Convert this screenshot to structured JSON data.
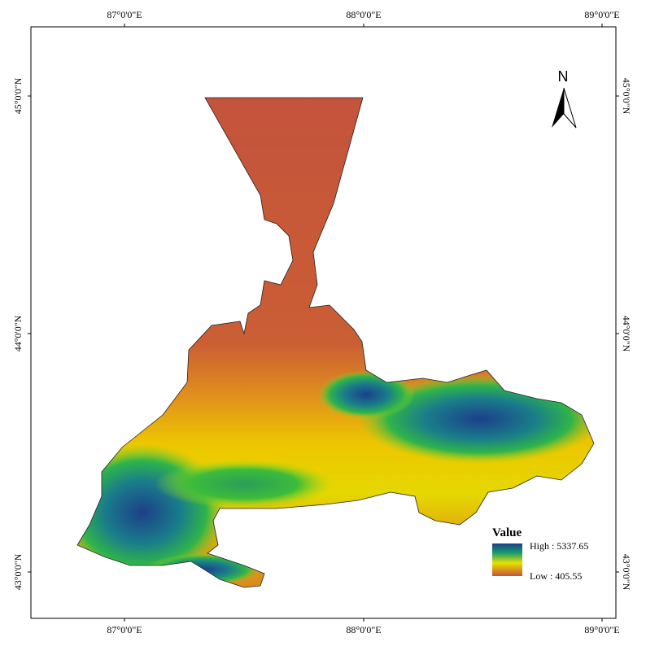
{
  "map": {
    "top_ticks": [
      "87°0'0\"E",
      "88°0'0\"E",
      "89°0'0\"E"
    ],
    "bottom_ticks": [
      "87°0'0\"E",
      "88°0'0\"E",
      "89°0'0\"E"
    ],
    "left_ticks": [
      "45°0'0\"N",
      "44°0'0\"N",
      "43°0'0\"N"
    ],
    "right_ticks": [
      "45°0'0\"N",
      "44°0'0\"N",
      "43°0'0\"N"
    ],
    "north_label": "N",
    "legend": {
      "title": "Value",
      "high": "High : 5337.65",
      "low": "Low : 405.55"
    }
  }
}
